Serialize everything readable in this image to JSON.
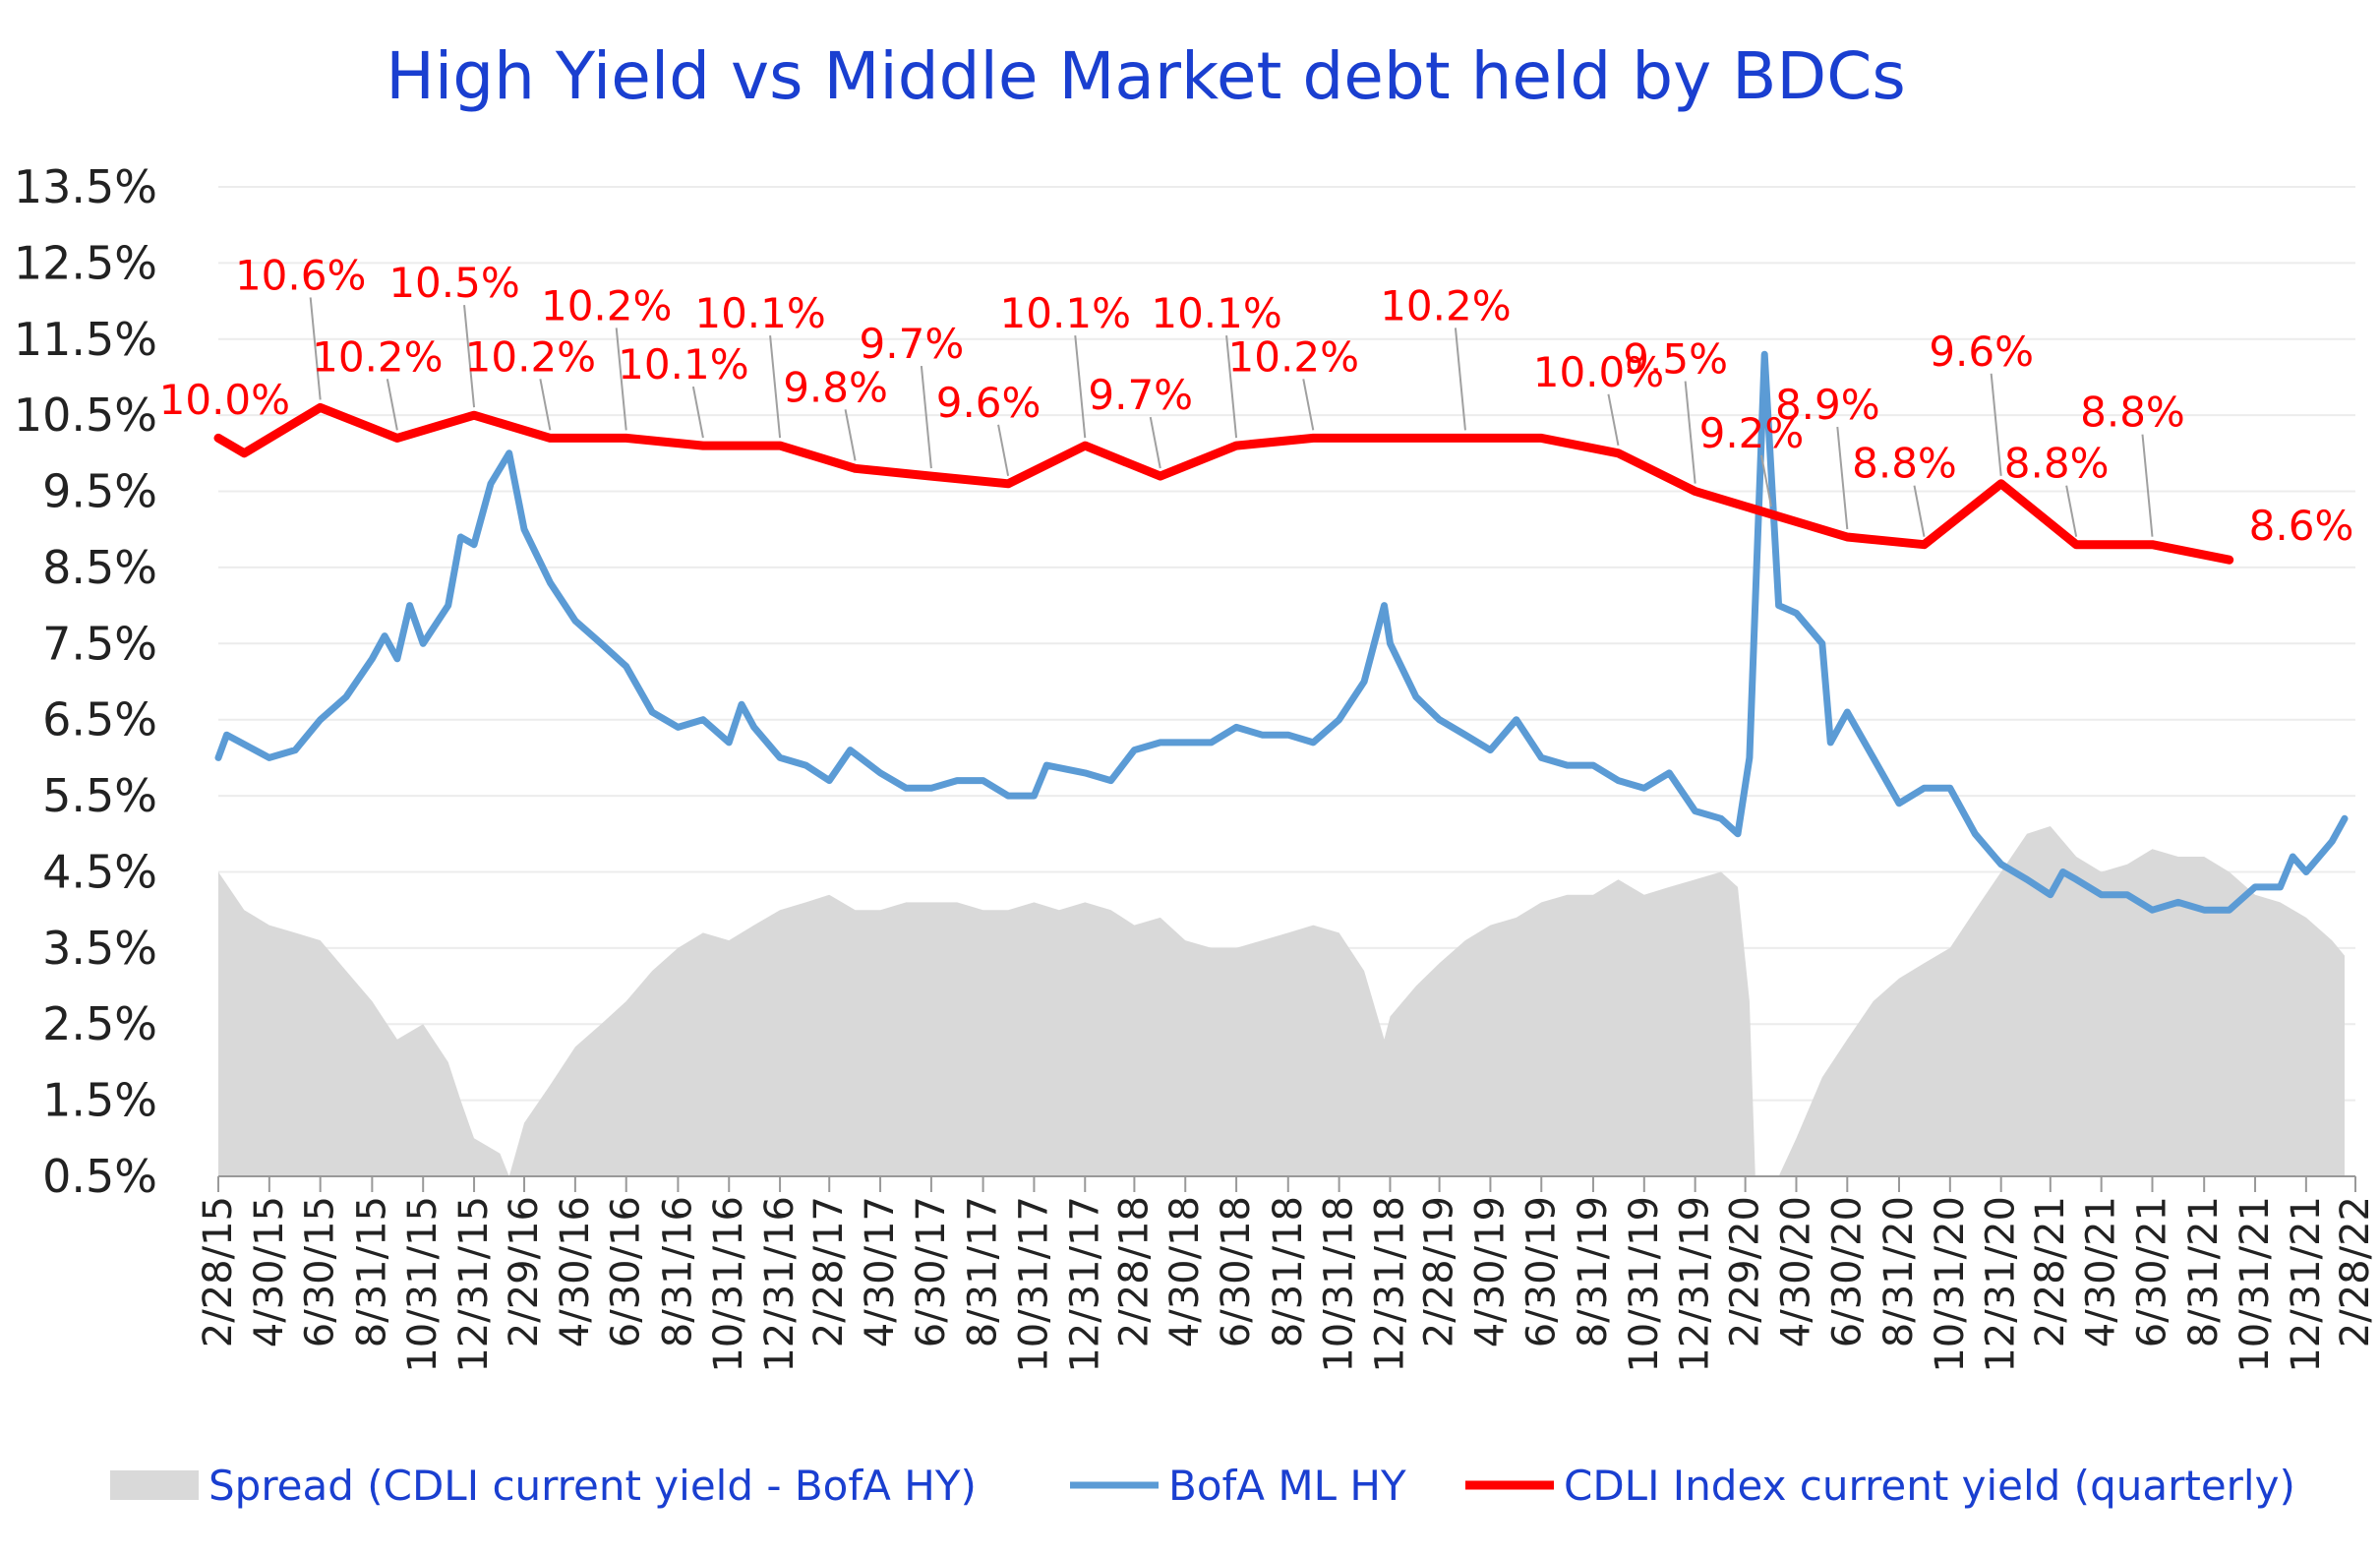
{
  "chart_data": {
    "type": "line",
    "title": "High Yield  vs  Middle Market debt held by BDCs",
    "xlabel": "",
    "ylabel": "",
    "ylim": [
      0.5,
      13.5
    ],
    "y_ticks": [
      "13.5%",
      "12.5%",
      "11.5%",
      "10.5%",
      "9.5%",
      "8.5%",
      "7.5%",
      "6.5%",
      "5.5%",
      "4.5%",
      "3.5%",
      "2.5%",
      "1.5%",
      "0.5%"
    ],
    "x_range": [
      "2015-02-28",
      "2022-02-28"
    ],
    "x_ticks": [
      "2/28/15",
      "4/30/15",
      "6/30/15",
      "8/31/15",
      "10/31/15",
      "12/31/15",
      "2/29/16",
      "4/30/16",
      "6/30/16",
      "8/31/16",
      "10/31/16",
      "12/31/16",
      "2/28/17",
      "4/30/17",
      "6/30/17",
      "8/31/17",
      "10/31/17",
      "12/31/17",
      "2/28/18",
      "4/30/18",
      "6/30/18",
      "8/31/18",
      "10/31/18",
      "12/31/18",
      "2/28/19",
      "4/30/19",
      "6/30/19",
      "8/31/19",
      "10/31/19",
      "12/31/19",
      "2/29/20",
      "4/30/20",
      "6/30/20",
      "8/31/20",
      "10/31/20",
      "12/31/20",
      "2/28/21",
      "4/30/21",
      "6/30/21",
      "8/31/21",
      "10/31/21",
      "12/31/21",
      "2/28/22"
    ],
    "grid": true,
    "legend_position": "bottom",
    "series": [
      {
        "name": "Spread (CDLI current yield - BofA HY)",
        "type": "area",
        "color": "#d9d9d9",
        "points": [
          [
            "2015-02-28",
            4.5
          ],
          [
            "2015-03-31",
            4.0
          ],
          [
            "2015-04-30",
            3.8
          ],
          [
            "2015-05-31",
            3.7
          ],
          [
            "2015-06-30",
            3.6
          ],
          [
            "2015-07-31",
            3.2
          ],
          [
            "2015-08-31",
            2.8
          ],
          [
            "2015-09-30",
            2.3
          ],
          [
            "2015-10-31",
            2.5
          ],
          [
            "2015-11-30",
            2.0
          ],
          [
            "2015-12-15",
            1.5
          ],
          [
            "2015-12-31",
            1.0
          ],
          [
            "2016-01-31",
            0.8
          ],
          [
            "2016-02-11",
            0.5
          ],
          [
            "2016-02-29",
            1.2
          ],
          [
            "2016-03-31",
            1.7
          ],
          [
            "2016-04-30",
            2.2
          ],
          [
            "2016-05-31",
            2.5
          ],
          [
            "2016-06-30",
            2.8
          ],
          [
            "2016-07-31",
            3.2
          ],
          [
            "2016-08-31",
            3.5
          ],
          [
            "2016-09-30",
            3.7
          ],
          [
            "2016-10-31",
            3.6
          ],
          [
            "2016-11-30",
            3.8
          ],
          [
            "2016-12-31",
            4.0
          ],
          [
            "2017-01-31",
            4.1
          ],
          [
            "2017-02-28",
            4.2
          ],
          [
            "2017-03-31",
            4.0
          ],
          [
            "2017-04-30",
            4.0
          ],
          [
            "2017-05-31",
            4.1
          ],
          [
            "2017-06-30",
            4.1
          ],
          [
            "2017-07-31",
            4.1
          ],
          [
            "2017-08-31",
            4.0
          ],
          [
            "2017-09-30",
            4.0
          ],
          [
            "2017-10-31",
            4.1
          ],
          [
            "2017-11-30",
            4.0
          ],
          [
            "2017-12-31",
            4.1
          ],
          [
            "2018-01-31",
            4.0
          ],
          [
            "2018-02-28",
            3.8
          ],
          [
            "2018-03-31",
            3.9
          ],
          [
            "2018-04-30",
            3.6
          ],
          [
            "2018-05-31",
            3.5
          ],
          [
            "2018-06-30",
            3.5
          ],
          [
            "2018-07-31",
            3.6
          ],
          [
            "2018-08-31",
            3.7
          ],
          [
            "2018-09-30",
            3.8
          ],
          [
            "2018-10-31",
            3.7
          ],
          [
            "2018-11-30",
            3.2
          ],
          [
            "2018-12-24",
            2.3
          ],
          [
            "2018-12-31",
            2.6
          ],
          [
            "2019-01-31",
            3.0
          ],
          [
            "2019-02-28",
            3.3
          ],
          [
            "2019-03-31",
            3.6
          ],
          [
            "2019-04-30",
            3.8
          ],
          [
            "2019-05-31",
            3.9
          ],
          [
            "2019-06-30",
            4.1
          ],
          [
            "2019-07-31",
            4.2
          ],
          [
            "2019-08-31",
            4.2
          ],
          [
            "2019-09-30",
            4.4
          ],
          [
            "2019-10-31",
            4.2
          ],
          [
            "2019-11-30",
            4.3
          ],
          [
            "2019-12-31",
            4.4
          ],
          [
            "2020-01-31",
            4.5
          ],
          [
            "2020-02-20",
            4.3
          ],
          [
            "2020-03-05",
            2.8
          ],
          [
            "2020-03-12",
            0.5
          ],
          [
            "2020-04-09",
            0.5
          ],
          [
            "2020-04-30",
            1.0
          ],
          [
            "2020-05-31",
            1.8
          ],
          [
            "2020-06-30",
            2.3
          ],
          [
            "2020-07-31",
            2.8
          ],
          [
            "2020-08-31",
            3.1
          ],
          [
            "2020-09-30",
            3.3
          ],
          [
            "2020-10-31",
            3.5
          ],
          [
            "2020-11-30",
            4.0
          ],
          [
            "2020-12-31",
            4.5
          ],
          [
            "2021-01-31",
            5.0
          ],
          [
            "2021-02-28",
            5.1
          ],
          [
            "2021-03-31",
            4.7
          ],
          [
            "2021-04-30",
            4.5
          ],
          [
            "2021-05-31",
            4.6
          ],
          [
            "2021-06-30",
            4.8
          ],
          [
            "2021-07-31",
            4.7
          ],
          [
            "2021-08-31",
            4.7
          ],
          [
            "2021-09-30",
            4.5
          ],
          [
            "2021-10-31",
            4.2
          ],
          [
            "2021-11-30",
            4.1
          ],
          [
            "2021-12-31",
            3.9
          ],
          [
            "2022-01-31",
            3.6
          ],
          [
            "2022-02-15",
            3.4
          ]
        ]
      },
      {
        "name": "BofA ML HY",
        "type": "line",
        "color": "#5b9bd5",
        "points": [
          [
            "2015-02-28",
            6.0
          ],
          [
            "2015-03-10",
            6.3
          ],
          [
            "2015-04-30",
            6.0
          ],
          [
            "2015-05-31",
            6.1
          ],
          [
            "2015-06-30",
            6.5
          ],
          [
            "2015-07-31",
            6.8
          ],
          [
            "2015-08-31",
            7.3
          ],
          [
            "2015-09-15",
            7.6
          ],
          [
            "2015-09-30",
            7.3
          ],
          [
            "2015-10-15",
            8.0
          ],
          [
            "2015-10-31",
            7.5
          ],
          [
            "2015-11-30",
            8.0
          ],
          [
            "2015-12-15",
            8.9
          ],
          [
            "2015-12-31",
            8.8
          ],
          [
            "2016-01-20",
            9.6
          ],
          [
            "2016-02-11",
            10.0
          ],
          [
            "2016-02-29",
            9.0
          ],
          [
            "2016-03-31",
            8.3
          ],
          [
            "2016-04-30",
            7.8
          ],
          [
            "2016-05-31",
            7.5
          ],
          [
            "2016-06-30",
            7.2
          ],
          [
            "2016-07-31",
            6.6
          ],
          [
            "2016-08-31",
            6.4
          ],
          [
            "2016-09-30",
            6.5
          ],
          [
            "2016-10-31",
            6.2
          ],
          [
            "2016-11-15",
            6.7
          ],
          [
            "2016-11-30",
            6.4
          ],
          [
            "2016-12-31",
            6.0
          ],
          [
            "2017-01-31",
            5.9
          ],
          [
            "2017-02-28",
            5.7
          ],
          [
            "2017-03-25",
            6.1
          ],
          [
            "2017-04-30",
            5.8
          ],
          [
            "2017-05-31",
            5.6
          ],
          [
            "2017-06-30",
            5.6
          ],
          [
            "2017-07-31",
            5.7
          ],
          [
            "2017-08-31",
            5.7
          ],
          [
            "2017-09-30",
            5.5
          ],
          [
            "2017-10-31",
            5.5
          ],
          [
            "2017-11-15",
            5.9
          ],
          [
            "2017-12-31",
            5.8
          ],
          [
            "2018-01-31",
            5.7
          ],
          [
            "2018-02-28",
            6.1
          ],
          [
            "2018-03-31",
            6.2
          ],
          [
            "2018-04-30",
            6.2
          ],
          [
            "2018-05-31",
            6.2
          ],
          [
            "2018-06-30",
            6.4
          ],
          [
            "2018-07-31",
            6.3
          ],
          [
            "2018-08-31",
            6.3
          ],
          [
            "2018-09-30",
            6.2
          ],
          [
            "2018-10-31",
            6.5
          ],
          [
            "2018-11-30",
            7.0
          ],
          [
            "2018-12-24",
            8.0
          ],
          [
            "2018-12-31",
            7.5
          ],
          [
            "2019-01-31",
            6.8
          ],
          [
            "2019-02-28",
            6.5
          ],
          [
            "2019-03-31",
            6.3
          ],
          [
            "2019-04-30",
            6.1
          ],
          [
            "2019-05-31",
            6.5
          ],
          [
            "2019-06-30",
            6.0
          ],
          [
            "2019-07-31",
            5.9
          ],
          [
            "2019-08-31",
            5.9
          ],
          [
            "2019-09-30",
            5.7
          ],
          [
            "2019-10-31",
            5.6
          ],
          [
            "2019-11-30",
            5.8
          ],
          [
            "2019-12-31",
            5.3
          ],
          [
            "2020-01-31",
            5.2
          ],
          [
            "2020-02-20",
            5.0
          ],
          [
            "2020-03-05",
            6.0
          ],
          [
            "2020-03-23",
            11.3
          ],
          [
            "2020-04-09",
            8.0
          ],
          [
            "2020-04-30",
            7.9
          ],
          [
            "2020-05-31",
            7.5
          ],
          [
            "2020-06-10",
            6.2
          ],
          [
            "2020-06-30",
            6.6
          ],
          [
            "2020-07-31",
            6.0
          ],
          [
            "2020-08-31",
            5.4
          ],
          [
            "2020-09-30",
            5.6
          ],
          [
            "2020-10-31",
            5.6
          ],
          [
            "2020-11-30",
            5.0
          ],
          [
            "2020-12-31",
            4.6
          ],
          [
            "2021-01-31",
            4.4
          ],
          [
            "2021-02-28",
            4.2
          ],
          [
            "2021-03-15",
            4.5
          ],
          [
            "2021-03-31",
            4.4
          ],
          [
            "2021-04-30",
            4.2
          ],
          [
            "2021-05-31",
            4.2
          ],
          [
            "2021-06-30",
            4.0
          ],
          [
            "2021-07-31",
            4.1
          ],
          [
            "2021-08-31",
            4.0
          ],
          [
            "2021-09-30",
            4.0
          ],
          [
            "2021-10-31",
            4.3
          ],
          [
            "2021-11-30",
            4.3
          ],
          [
            "2021-12-15",
            4.7
          ],
          [
            "2021-12-31",
            4.5
          ],
          [
            "2022-01-31",
            4.9
          ],
          [
            "2022-02-15",
            5.2
          ]
        ]
      },
      {
        "name": "CDLI Index current yield (quarterly)",
        "type": "line",
        "color": "#ff0000",
        "points": [
          [
            "2015-02-28",
            10.2
          ],
          [
            "2015-03-31",
            10.0
          ],
          [
            "2015-06-30",
            10.6
          ],
          [
            "2015-09-30",
            10.2
          ],
          [
            "2015-12-31",
            10.5
          ],
          [
            "2016-03-31",
            10.2
          ],
          [
            "2016-06-30",
            10.2
          ],
          [
            "2016-09-30",
            10.1
          ],
          [
            "2016-12-31",
            10.1
          ],
          [
            "2017-03-31",
            9.8
          ],
          [
            "2017-06-30",
            9.7
          ],
          [
            "2017-09-30",
            9.6
          ],
          [
            "2017-12-31",
            10.1
          ],
          [
            "2018-03-31",
            9.7
          ],
          [
            "2018-06-30",
            10.1
          ],
          [
            "2018-09-30",
            10.2
          ],
          [
            "2018-12-31",
            10.2
          ],
          [
            "2019-03-31",
            10.2
          ],
          [
            "2019-06-30",
            10.2
          ],
          [
            "2019-09-30",
            10.0
          ],
          [
            "2019-12-31",
            9.5
          ],
          [
            "2020-03-31",
            9.2
          ],
          [
            "2020-06-30",
            8.9
          ],
          [
            "2020-09-30",
            8.8
          ],
          [
            "2020-12-31",
            9.6
          ],
          [
            "2021-03-31",
            8.8
          ],
          [
            "2021-06-30",
            8.8
          ],
          [
            "2021-09-30",
            8.6
          ]
        ]
      }
    ],
    "data_labels": [
      {
        "text": "10.0%",
        "date": "2015-03-31"
      },
      {
        "text": "10.6%",
        "date": "2015-06-30"
      },
      {
        "text": "10.2%",
        "date": "2015-09-30"
      },
      {
        "text": "10.5%",
        "date": "2015-12-31"
      },
      {
        "text": "10.2%",
        "date": "2016-03-31"
      },
      {
        "text": "10.2%",
        "date": "2016-06-30"
      },
      {
        "text": "10.1%",
        "date": "2016-09-30"
      },
      {
        "text": "10.1%",
        "date": "2016-12-31"
      },
      {
        "text": "9.8%",
        "date": "2017-03-31"
      },
      {
        "text": "9.7%",
        "date": "2017-06-30"
      },
      {
        "text": "9.6%",
        "date": "2017-09-30"
      },
      {
        "text": "10.1%",
        "date": "2017-12-31"
      },
      {
        "text": "9.7%",
        "date": "2018-03-31"
      },
      {
        "text": "10.1%",
        "date": "2018-06-30"
      },
      {
        "text": "10.2%",
        "date": "2018-09-30"
      },
      {
        "text": "10.2%",
        "date": "2019-03-31"
      },
      {
        "text": "10.0%",
        "date": "2019-09-30"
      },
      {
        "text": "9.5%",
        "date": "2019-12-31"
      },
      {
        "text": "9.2%",
        "date": "2020-03-31"
      },
      {
        "text": "8.9%",
        "date": "2020-06-30"
      },
      {
        "text": "8.8%",
        "date": "2020-09-30"
      },
      {
        "text": "9.6%",
        "date": "2020-12-31"
      },
      {
        "text": "8.8%",
        "date": "2021-03-31"
      },
      {
        "text": "8.8%",
        "date": "2021-06-30"
      },
      {
        "text": "8.6%",
        "date": "2021-09-30"
      }
    ]
  }
}
